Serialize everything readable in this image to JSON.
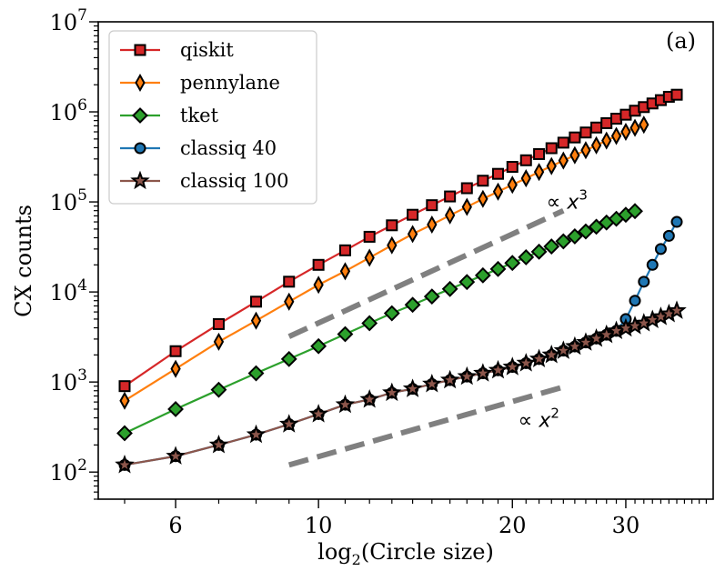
{
  "chart_data": {
    "type": "line",
    "panel_label": "(a)",
    "xlabel": "log",
    "xlabel_sub": "2",
    "xlabel_rest": "(Circle size)",
    "ylabel": "CX counts",
    "xscale": "log",
    "yscale": "log",
    "xlim": [
      4.55,
      41
    ],
    "ylim": [
      50,
      10000000
    ],
    "x_ticks": [
      {
        "value": 6,
        "label": "6"
      },
      {
        "value": 10,
        "label": "10"
      },
      {
        "value": 20,
        "label": "20"
      },
      {
        "value": 30,
        "label": "30"
      }
    ],
    "y_ticks": [
      {
        "value": 100,
        "base": "10",
        "exp": "2"
      },
      {
        "value": 1000,
        "base": "10",
        "exp": "3"
      },
      {
        "value": 10000,
        "base": "10",
        "exp": "4"
      },
      {
        "value": 100000,
        "base": "10",
        "exp": "5"
      },
      {
        "value": 1000000,
        "base": "10",
        "exp": "6"
      },
      {
        "value": 10000000,
        "base": "10",
        "exp": "7"
      }
    ],
    "legend_position": "top-left",
    "series": [
      {
        "name": "qiskit",
        "color": "#d62728",
        "marker": "square",
        "x": [
          5,
          6,
          7,
          8,
          9,
          10,
          11,
          12,
          13,
          14,
          15,
          16,
          17,
          18,
          19,
          20,
          21,
          22,
          23,
          24,
          25,
          26,
          27,
          28,
          29,
          30,
          31,
          32,
          33,
          34,
          35,
          36
        ],
        "y": [
          900,
          2200,
          4400,
          7800,
          13000,
          20000,
          29000,
          41000,
          55000,
          72000,
          92000,
          115000,
          142000,
          172000,
          205000,
          245000,
          290000,
          340000,
          395000,
          455000,
          520000,
          590000,
          670000,
          750000,
          840000,
          930000,
          1030000,
          1130000,
          1240000,
          1350000,
          1470000,
          1550000
        ]
      },
      {
        "name": "pennylane",
        "color": "#ff7f0e",
        "marker": "thin_diamond",
        "x": [
          5,
          6,
          7,
          8,
          9,
          10,
          11,
          12,
          13,
          14,
          15,
          16,
          17,
          18,
          19,
          20,
          21,
          22,
          23,
          24,
          25,
          26,
          27,
          28,
          29,
          30,
          31,
          32
        ],
        "y": [
          620,
          1400,
          2800,
          4800,
          7800,
          12000,
          17000,
          24000,
          33000,
          44000,
          56000,
          71000,
          88000,
          108000,
          130000,
          155000,
          183000,
          215000,
          250000,
          288000,
          330000,
          375000,
          425000,
          480000,
          540000,
          600000,
          665000,
          720000
        ]
      },
      {
        "name": "tket",
        "color": "#2ca02c",
        "marker": "diamond",
        "x": [
          5,
          6,
          7,
          8,
          9,
          10,
          11,
          12,
          13,
          14,
          15,
          16,
          17,
          18,
          19,
          20,
          21,
          22,
          23,
          24,
          25,
          26,
          27,
          28,
          29,
          30,
          31
        ],
        "y": [
          270,
          500,
          820,
          1250,
          1800,
          2500,
          3400,
          4500,
          5800,
          7200,
          8900,
          10800,
          12900,
          15300,
          18000,
          21000,
          24300,
          28000,
          32000,
          36500,
          41500,
          47000,
          53000,
          59000,
          65000,
          72000,
          79000
        ]
      },
      {
        "name": "classiq 40",
        "color": "#1f77b4",
        "marker": "circle",
        "x": [
          5,
          6,
          7,
          8,
          9,
          10,
          11,
          12,
          13,
          14,
          15,
          16,
          17,
          18,
          19,
          20,
          21,
          22,
          23,
          24,
          25,
          26,
          27,
          28,
          29,
          30,
          31,
          32,
          33,
          34,
          35,
          36
        ],
        "y": [
          120,
          150,
          200,
          260,
          340,
          440,
          560,
          640,
          760,
          840,
          950,
          1050,
          1150,
          1250,
          1350,
          1470,
          1620,
          1800,
          2000,
          2230,
          2480,
          2750,
          3040,
          3350,
          3700,
          5000,
          8000,
          13000,
          20000,
          30000,
          42000,
          60000
        ]
      },
      {
        "name": "classiq 100",
        "color": "#8c564b",
        "marker": "star",
        "x": [
          5,
          6,
          7,
          8,
          9,
          10,
          11,
          12,
          13,
          14,
          15,
          16,
          17,
          18,
          19,
          20,
          21,
          22,
          23,
          24,
          25,
          26,
          27,
          28,
          29,
          30,
          31,
          32,
          33,
          34,
          35,
          36
        ],
        "y": [
          120,
          150,
          200,
          260,
          340,
          440,
          560,
          640,
          760,
          840,
          950,
          1050,
          1150,
          1250,
          1350,
          1470,
          1620,
          1800,
          2000,
          2230,
          2480,
          2750,
          3040,
          3350,
          3700,
          3950,
          4200,
          4500,
          4900,
          5300,
          5700,
          6200
        ]
      }
    ],
    "reference_lines": [
      {
        "label": "∝",
        "var": "x",
        "exp": "3",
        "x": [
          9,
          24
        ],
        "y": [
          3200,
          80000
        ]
      },
      {
        "label": "∝",
        "var": "x",
        "exp": "2",
        "x": [
          9,
          24
        ],
        "y": [
          120,
          880
        ]
      }
    ]
  }
}
